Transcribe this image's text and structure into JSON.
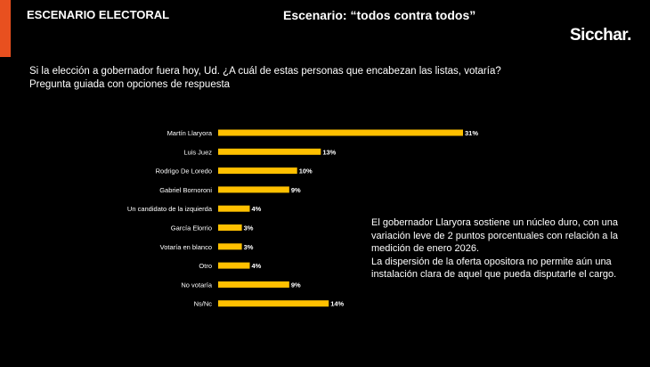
{
  "header": {
    "section_title": "ESCENARIO ELECTORAL",
    "scenario_title": "Escenario: “todos contra todos”",
    "brand": "Sicchar."
  },
  "question": {
    "text": "Si la elección a gobernador fuera hoy, Ud.    ¿A cuál de estas personas que encabezan las listas, votaría?",
    "subtext": "Pregunta guiada con opciones de respuesta"
  },
  "chart_data": {
    "type": "bar",
    "orientation": "horizontal",
    "categories": [
      "Martín Llaryora",
      "Luis Juez",
      "Rodrigo De Loredo",
      "Gabriel Bornoroni",
      "Un candidato de la izquierda",
      "García Elorrio",
      "Votaría en blanco",
      "Otro",
      "No votaría",
      "Ns/Nc"
    ],
    "values": [
      31,
      13,
      10,
      9,
      4,
      3,
      3,
      4,
      9,
      14
    ],
    "value_labels": [
      "31%",
      "13%",
      "10%",
      "9%",
      "4%",
      "3%",
      "3%",
      "4%",
      "9%",
      "14%"
    ],
    "xlim": [
      0,
      31
    ],
    "grid": false,
    "bar_color": "#ffc000"
  },
  "commentary": {
    "paragraph_1": "El gobernador Llaryora sostiene un núcleo duro, con una variación leve de 2 puntos porcentuales con relación a la medición de enero 2026.",
    "paragraph_2": "La dispersión de la oferta opositora no permite aún una instalación clara de aquel que pueda disputarle el cargo."
  },
  "colors": {
    "accent": "#e8501f",
    "background": "#000000",
    "text": "#ffffff"
  }
}
